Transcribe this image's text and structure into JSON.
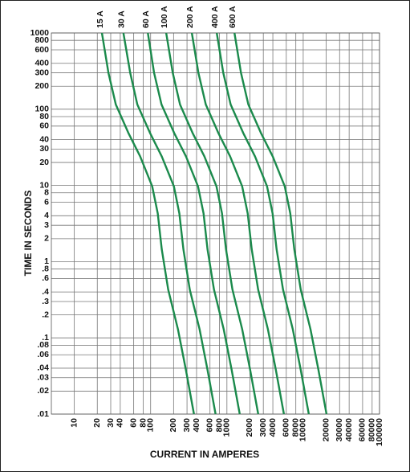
{
  "chart_data": {
    "type": "line",
    "xlabel": "CURRENT IN AMPERES",
    "ylabel": "TIME IN SECONDS",
    "xscale": "log",
    "yscale": "log",
    "grid": true,
    "xlim": [
      5,
      100000
    ],
    "ylim": [
      0.01,
      1000
    ],
    "xticks": [
      10,
      20,
      30,
      40,
      60,
      80,
      100,
      200,
      300,
      400,
      600,
      800,
      1000,
      2000,
      3000,
      4000,
      6000,
      8000,
      10000,
      20000,
      30000,
      40000,
      60000,
      80000,
      100000
    ],
    "yticks": [
      1000,
      800,
      600,
      400,
      300,
      200,
      100,
      80,
      60,
      40,
      30,
      20,
      10,
      8,
      6,
      4,
      3,
      2,
      1,
      {
        "value": 0.8,
        "label": ".8"
      },
      {
        "value": 0.6,
        "label": ".6"
      },
      {
        "value": 0.4,
        "label": ".4"
      },
      {
        "value": 0.3,
        "label": ".3"
      },
      {
        "value": 0.2,
        "label": ".2"
      },
      {
        "value": 0.1,
        "label": ".1"
      },
      {
        "value": 0.08,
        "label": ".08"
      },
      {
        "value": 0.06,
        "label": ".06"
      },
      {
        "value": 0.04,
        "label": ".04"
      },
      {
        "value": 0.03,
        "label": ".03"
      },
      {
        "value": 0.02,
        "label": ".02"
      },
      {
        "value": 0.01,
        "label": ".01"
      }
    ],
    "series": [
      {
        "name": "15 A",
        "color": "#1b8a4c",
        "x": [
          23,
          28,
          35,
          51,
          73,
          105,
          124,
          140,
          170,
          228,
          290,
          370
        ],
        "values": [
          1000,
          300,
          115,
          49,
          24,
          9.7,
          4.3,
          1.45,
          0.43,
          0.13,
          0.038,
          0.01
        ]
      },
      {
        "name": "30 A",
        "color": "#1b8a4c",
        "x": [
          44,
          54,
          67,
          98,
          140,
          202,
          238,
          269,
          326,
          438,
          557,
          710
        ],
        "values": [
          1000,
          300,
          115,
          49,
          24,
          9.7,
          4.3,
          1.45,
          0.43,
          0.13,
          0.038,
          0.01
        ]
      },
      {
        "name": "60 A",
        "color": "#1b8a4c",
        "x": [
          92,
          111,
          139,
          203,
          291,
          418,
          494,
          557,
          677,
          907,
          1154,
          1473
        ],
        "values": [
          1000,
          300,
          115,
          49,
          24,
          9.7,
          4.3,
          1.45,
          0.43,
          0.13,
          0.038,
          0.01
        ]
      },
      {
        "name": "100 A",
        "color": "#1b8a4c",
        "x": [
          160,
          195,
          243,
          354,
          507,
          730,
          862,
          973,
          1182,
          1585,
          2016,
          2572
        ],
        "values": [
          1000,
          300,
          115,
          49,
          24,
          9.7,
          4.3,
          1.45,
          0.43,
          0.13,
          0.038,
          0.01
        ]
      },
      {
        "name": "200 A",
        "color": "#1b8a4c",
        "x": [
          347,
          423,
          529,
          770,
          1102,
          1586,
          1872,
          2114,
          2567,
          3443,
          4379,
          5587
        ],
        "values": [
          1000,
          300,
          115,
          49,
          24,
          9.7,
          4.3,
          1.45,
          0.43,
          0.13,
          0.038,
          0.01
        ]
      },
      {
        "name": "400 A",
        "color": "#1b8a4c",
        "x": [
          736,
          896,
          1120,
          1632,
          2336,
          3360,
          3968,
          4480,
          5440,
          7296,
          9280,
          11840
        ],
        "values": [
          1000,
          300,
          115,
          49,
          24,
          9.7,
          4.3,
          1.45,
          0.43,
          0.13,
          0.038,
          0.01
        ]
      },
      {
        "name": "600 A",
        "color": "#1b8a4c",
        "x": [
          1256,
          1529,
          1911,
          2785,
          3986,
          5733,
          6770,
          7644,
          9282,
          12449,
          15834,
          20202
        ],
        "values": [
          1000,
          300,
          115,
          49,
          24,
          9.7,
          4.3,
          1.45,
          0.43,
          0.13,
          0.038,
          0.01
        ]
      }
    ]
  }
}
